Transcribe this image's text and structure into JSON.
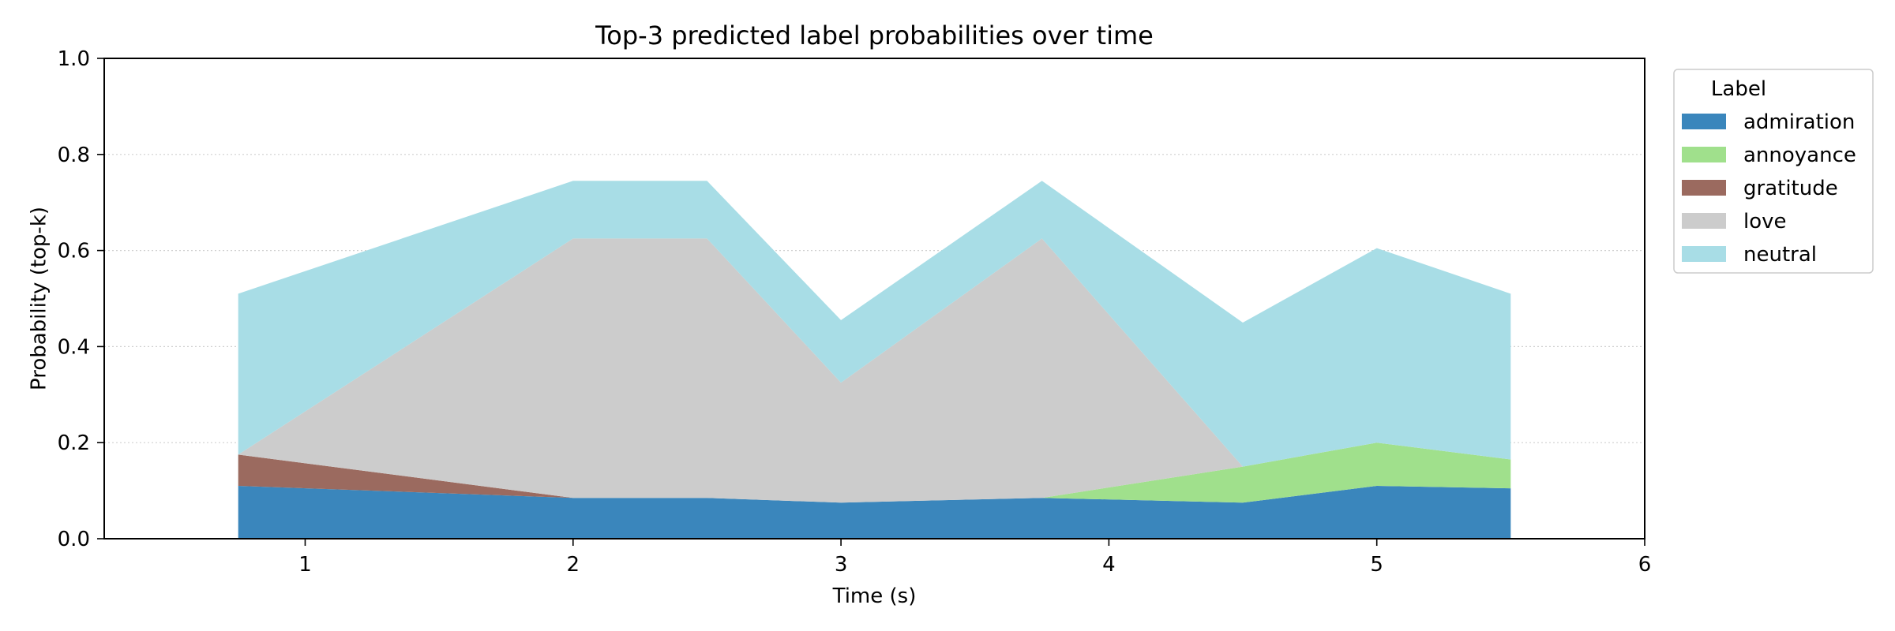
{
  "chart_data": {
    "type": "area",
    "stacked": true,
    "title": "Top-3 predicted label probabilities over time",
    "xlabel": "Time (s)",
    "ylabel": "Probability (top-k)",
    "xlim": [
      0.25,
      6
    ],
    "ylim": [
      0,
      1
    ],
    "xticks": [
      1,
      2,
      3,
      4,
      5,
      6
    ],
    "yticks": [
      0.0,
      0.2,
      0.4,
      0.6,
      0.8,
      1.0
    ],
    "ytick_labels": [
      "0.0",
      "0.2",
      "0.4",
      "0.6",
      "0.8",
      "1.0"
    ],
    "grid": "horizontal dotted",
    "legend": {
      "title": "Label",
      "placement": "outside top-right"
    },
    "x": [
      0.75,
      2.0,
      2.5,
      3.0,
      3.75,
      4.5,
      5.0,
      5.5
    ],
    "series": [
      {
        "name": "admiration",
        "color": "#3a86bc",
        "values": [
          0.11,
          0.085,
          0.085,
          0.075,
          0.085,
          0.075,
          0.11,
          0.105
        ]
      },
      {
        "name": "annoyance",
        "color": "#a0e08c",
        "values": [
          0,
          0,
          0,
          0,
          0,
          0.075,
          0.09,
          0.06
        ]
      },
      {
        "name": "gratitude",
        "color": "#9b6a5f",
        "values": [
          0.065,
          0,
          0,
          0,
          0,
          0,
          0,
          0
        ]
      },
      {
        "name": "love",
        "color": "#cccccc",
        "values": [
          0,
          0.54,
          0.54,
          0.25,
          0.54,
          0,
          0,
          0
        ]
      },
      {
        "name": "neutral",
        "color": "#a8dde6",
        "values": [
          0.335,
          0.12,
          0.12,
          0.13,
          0.12,
          0.3,
          0.405,
          0.345
        ]
      }
    ]
  }
}
